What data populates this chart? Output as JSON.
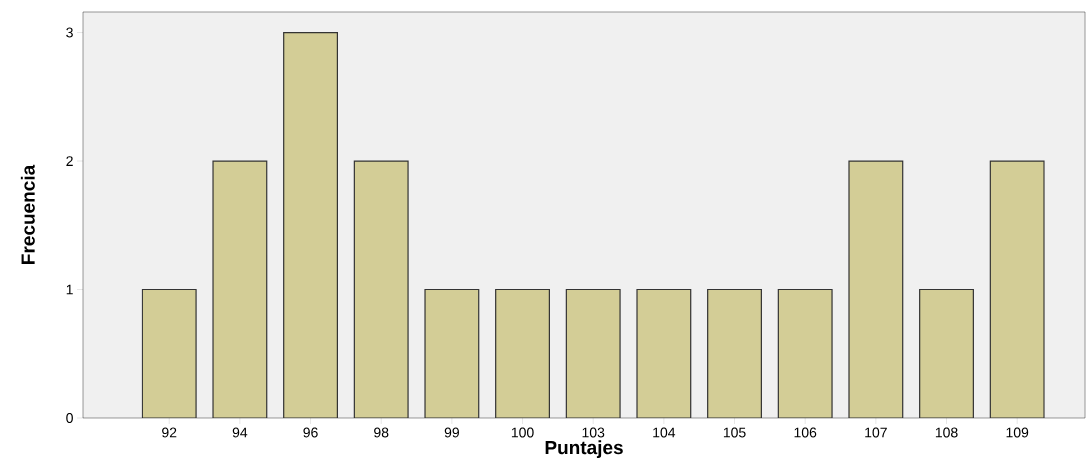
{
  "chart_data": {
    "type": "bar",
    "xlabel": "Puntajes",
    "ylabel": "Frecuencia",
    "categories": [
      "92",
      "94",
      "96",
      "98",
      "99",
      "100",
      "103",
      "104",
      "105",
      "106",
      "107",
      "108",
      "109"
    ],
    "values": [
      1,
      2,
      3,
      2,
      1,
      1,
      1,
      1,
      1,
      1,
      2,
      1,
      2
    ],
    "color": "#d3cd96",
    "ylim": [
      0,
      3.16
    ],
    "yticks": [
      0,
      1,
      2,
      3
    ],
    "grid": false
  }
}
